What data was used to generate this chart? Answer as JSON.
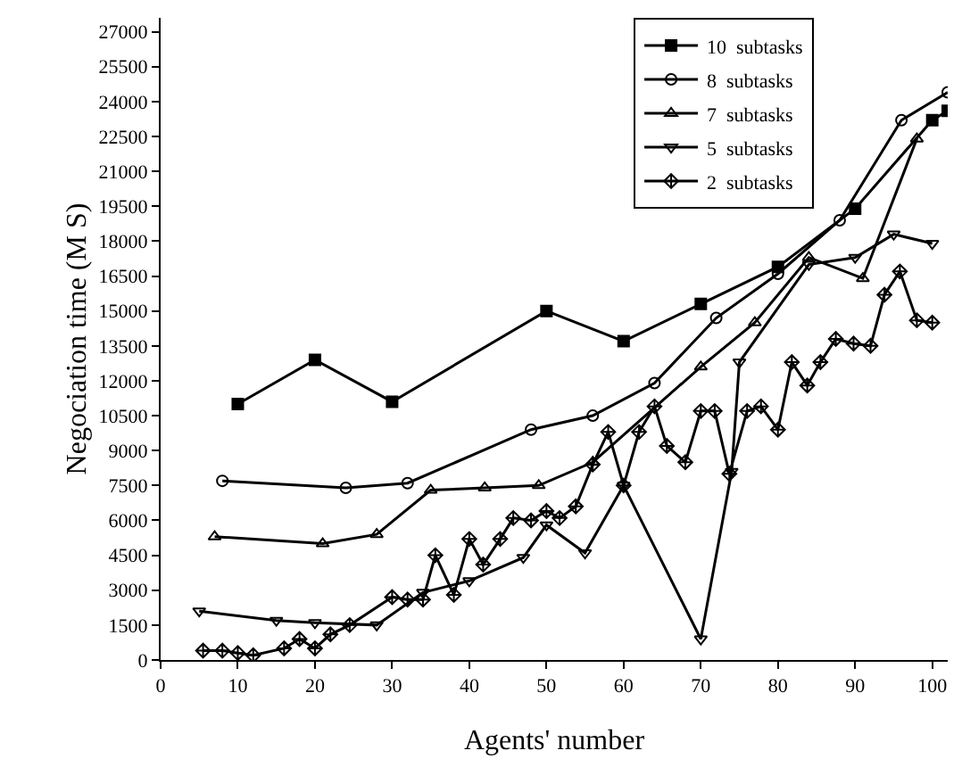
{
  "chart_data": {
    "type": "line",
    "xlabel": "Agents' number",
    "ylabel": "Negociation time (M S)",
    "xlim": [
      0,
      102
    ],
    "xticks": [
      0,
      10,
      20,
      30,
      40,
      50,
      60,
      70,
      80,
      90,
      100
    ],
    "ylim": [
      0,
      27600
    ],
    "yticks": [
      0,
      1500,
      3000,
      4500,
      6000,
      7500,
      9000,
      10500,
      12000,
      13500,
      15000,
      16500,
      18000,
      19500,
      21000,
      22500,
      24000,
      25500,
      27000
    ],
    "grid": false,
    "legend": "top right",
    "line_style": "solid",
    "series": [
      {
        "name": "10  subtasks",
        "color": "#000000",
        "marker": "square",
        "x": [
          10,
          20,
          30,
          50,
          60,
          70,
          80,
          90,
          100,
          102
        ],
        "values": [
          11000,
          12900,
          11100,
          15000,
          13700,
          15300,
          16900,
          19400,
          23200,
          23600
        ]
      },
      {
        "name": "8  subtasks",
        "color": "#000000",
        "marker": "circle",
        "x": [
          8,
          24,
          32,
          48,
          56,
          64,
          72,
          80,
          88,
          96,
          102
        ],
        "values": [
          7700,
          7400,
          7600,
          9900,
          10500,
          11900,
          14700,
          16600,
          18900,
          23200,
          24400
        ]
      },
      {
        "name": "7  subtasks",
        "color": "#000000",
        "marker": "triangle",
        "x": [
          7,
          21,
          28,
          35,
          42,
          49,
          56,
          70,
          77,
          84,
          91,
          98
        ],
        "values": [
          5300,
          5000,
          5400,
          7300,
          7400,
          7500,
          8500,
          12600,
          14500,
          17300,
          16400,
          22400
        ]
      },
      {
        "name": "5  subtasks",
        "color": "#000000",
        "marker": "triangle-down",
        "x": [
          5,
          15,
          20,
          28,
          34,
          40,
          47,
          50,
          55,
          60,
          70,
          74,
          75,
          84,
          90,
          95,
          100
        ],
        "values": [
          2100,
          1700,
          1600,
          1500,
          2900,
          3400,
          4400,
          5800,
          4600,
          7500,
          900,
          8100,
          12800,
          17000,
          17300,
          18300,
          17900
        ]
      },
      {
        "name": "2  subtasks",
        "color": "#000000",
        "marker": "diamond-cross",
        "x": [
          5.5,
          8,
          10,
          12,
          16,
          18,
          20,
          22,
          24.5,
          30,
          32,
          34,
          35.6,
          38,
          40,
          41.8,
          44,
          45.7,
          48,
          50,
          51.7,
          53.8,
          56,
          58,
          60,
          62,
          64,
          65.6,
          68,
          70,
          71.8,
          73.7,
          76,
          77.8,
          80,
          81.8,
          83.8,
          85.5,
          87.5,
          89.8,
          92,
          93.8,
          95.8,
          98,
          100
        ],
        "values": [
          400,
          400,
          300,
          200,
          500,
          900,
          500,
          1100,
          1500,
          2700,
          2600,
          2600,
          4500,
          2800,
          5200,
          4100,
          5200,
          6100,
          6000,
          6400,
          6100,
          6600,
          8400,
          9800,
          7500,
          9800,
          10900,
          9200,
          8500,
          10700,
          10700,
          8000,
          10700,
          10900,
          9900,
          12800,
          11800,
          12800,
          13800,
          13600,
          13500,
          15700,
          16700,
          14600,
          14500
        ]
      }
    ]
  }
}
